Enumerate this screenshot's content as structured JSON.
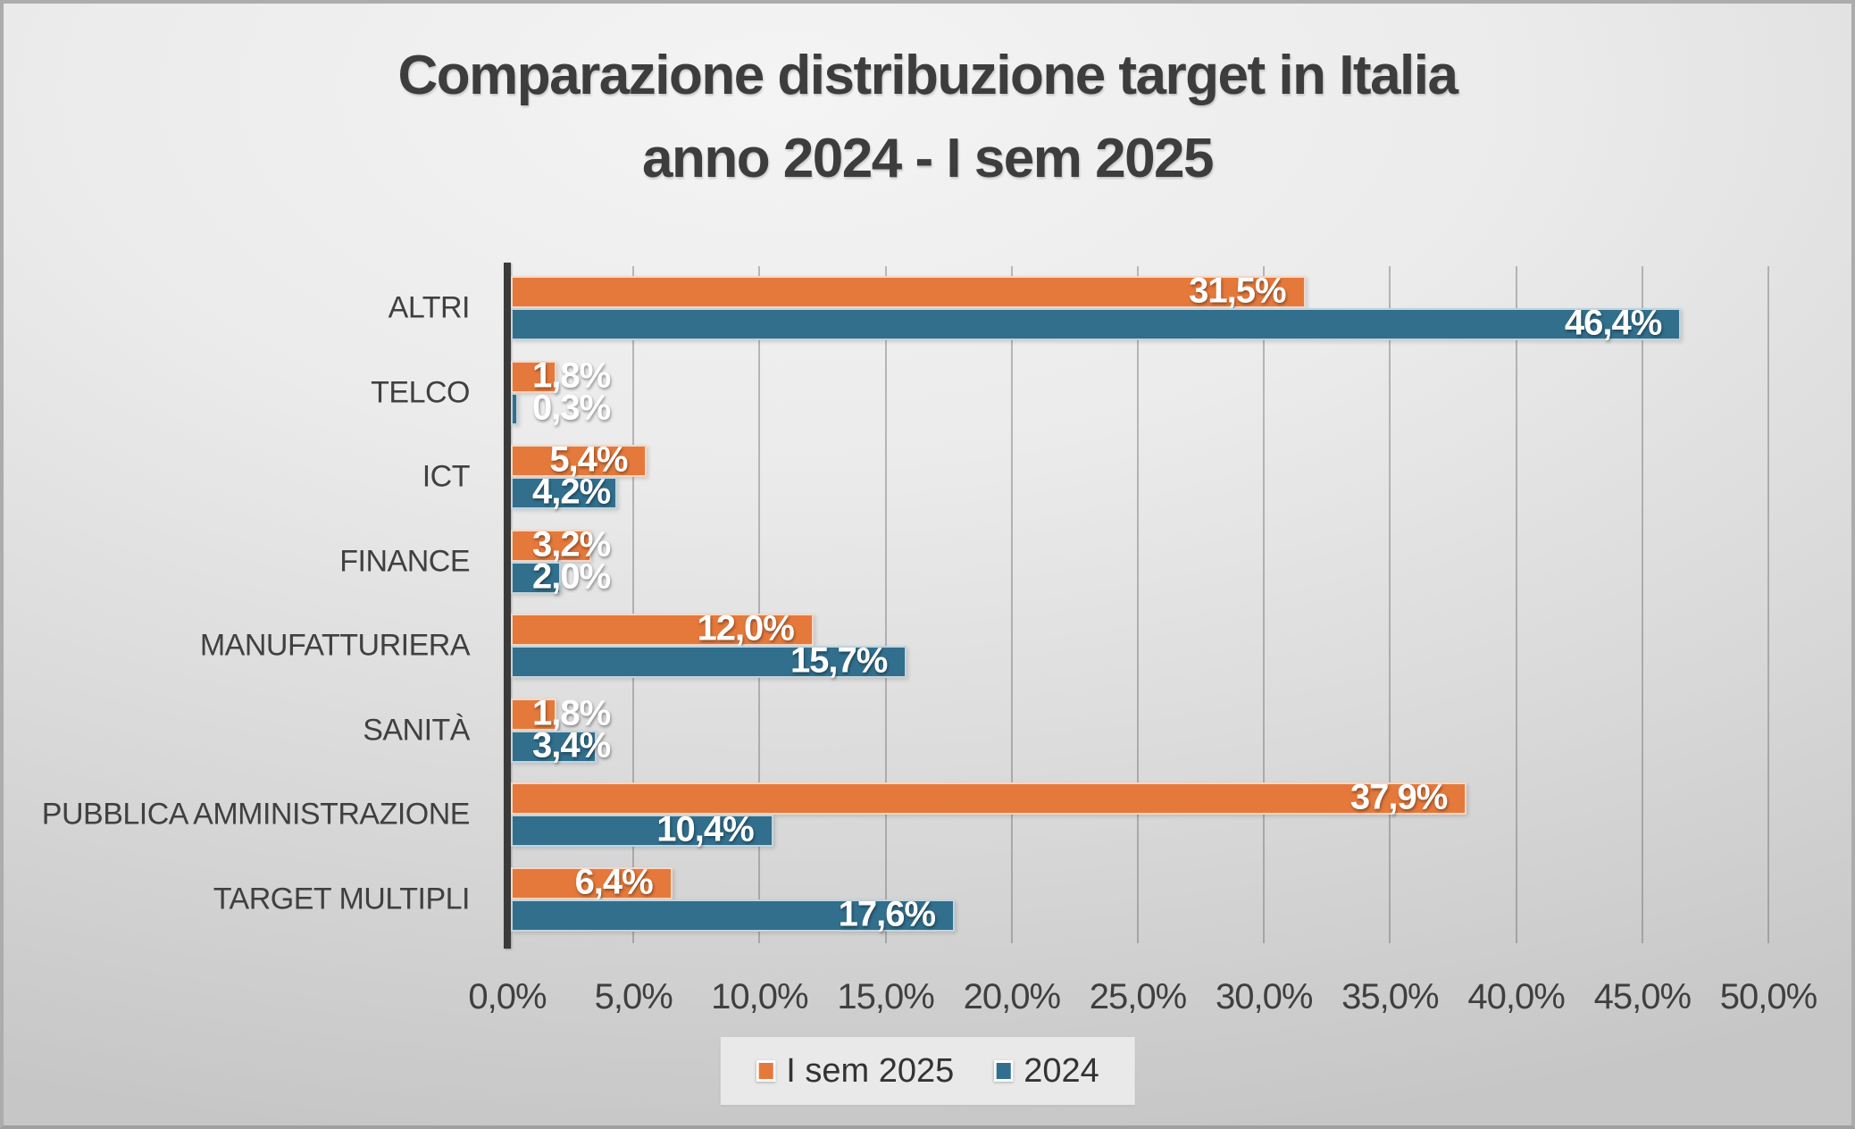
{
  "title": {
    "line1": "Comparazione distribuzione target in Italia",
    "line2": "anno 2024 - I sem 2025"
  },
  "chart_data": {
    "type": "bar",
    "orientation": "horizontal",
    "title": "Comparazione distribuzione target in Italia anno 2024 - I sem 2025",
    "categories": [
      "ALTRI",
      "TELCO",
      "ICT",
      "FINANCE",
      "MANUFATTURIERA",
      "SANITÀ",
      "PUBBLICA AMMINISTRAZIONE",
      "TARGET MULTIPLI"
    ],
    "series": [
      {
        "name": "I sem 2025",
        "color": "#E5793B",
        "values": [
          31.5,
          1.8,
          5.4,
          3.2,
          12.0,
          1.8,
          37.9,
          6.4
        ],
        "labels": [
          "31,5%",
          "1,8%",
          "5,4%",
          "3,2%",
          "12,0%",
          "1,8%",
          "37,9%",
          "6,4%"
        ]
      },
      {
        "name": "2024",
        "color": "#316F8D",
        "values": [
          46.4,
          0.3,
          4.2,
          2.0,
          15.7,
          3.4,
          10.4,
          17.6
        ],
        "labels": [
          "46,4%",
          "0,3%",
          "4,2%",
          "2,0%",
          "15,7%",
          "3,4%",
          "10,4%",
          "17,6%"
        ]
      }
    ],
    "x_axis": {
      "min": 0,
      "max": 50,
      "step": 5,
      "tick_labels": [
        "0,0%",
        "5,0%",
        "10,0%",
        "15,0%",
        "20,0%",
        "25,0%",
        "30,0%",
        "35,0%",
        "40,0%",
        "45,0%",
        "50,0%"
      ]
    },
    "legend": {
      "position": "bottom",
      "entries": [
        "I sem 2025",
        "2024"
      ]
    },
    "grid": true,
    "gap_width_hint": "bars adjacent within group, labels inside end in white bold"
  },
  "colors": {
    "series_i_sem_2025": "#E5793B",
    "series_2024": "#316F8D",
    "title_text": "#3D3D3D",
    "axis_text": "#3F3F3F",
    "axis_line": "#3A3A3A",
    "gridline": "#6A6A6A",
    "bar_value_text": "#FFFFFF",
    "legend_background": "#E9E9E9",
    "background_light": "#F4F4F4",
    "background_dark": "#C6C6C6"
  }
}
